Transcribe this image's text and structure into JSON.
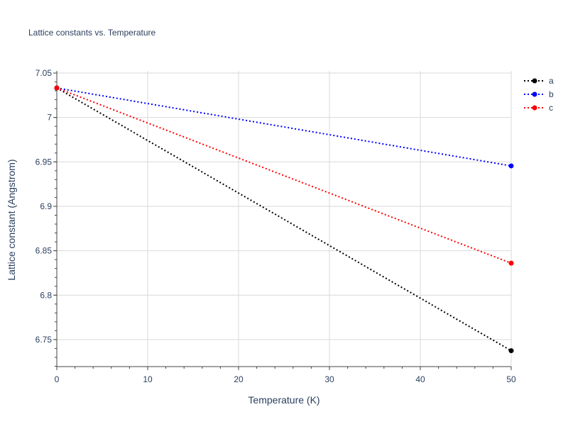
{
  "chart_data": {
    "type": "line",
    "title": "Lattice constants vs. Temperature",
    "xlabel": "Temperature (K)",
    "ylabel": "Lattice constant (Angstrom)",
    "xlim": [
      0,
      50
    ],
    "ylim": [
      6.7196,
      7.0524
    ],
    "xticks": [
      0,
      10,
      20,
      30,
      40,
      50
    ],
    "xtick_labels": [
      "0",
      "10",
      "20",
      "30",
      "40",
      "50"
    ],
    "yticks": [
      6.75,
      6.8,
      6.85,
      6.9,
      6.95,
      7.0,
      7.05
    ],
    "ytick_labels": [
      "6.75",
      "6.8",
      "6.85",
      "6.9",
      "6.95",
      "7",
      "7.05"
    ],
    "grid": true,
    "legend_position": "top-right",
    "series": [
      {
        "name": "a",
        "color": "#000000",
        "x": [
          0,
          50
        ],
        "y": [
          7.0332,
          6.7375
        ]
      },
      {
        "name": "b",
        "color": "#0000ff",
        "x": [
          0,
          50
        ],
        "y": [
          7.0332,
          6.9455
        ]
      },
      {
        "name": "c",
        "color": "#ff0000",
        "x": [
          0,
          50
        ],
        "y": [
          7.0332,
          6.836
        ]
      }
    ]
  }
}
